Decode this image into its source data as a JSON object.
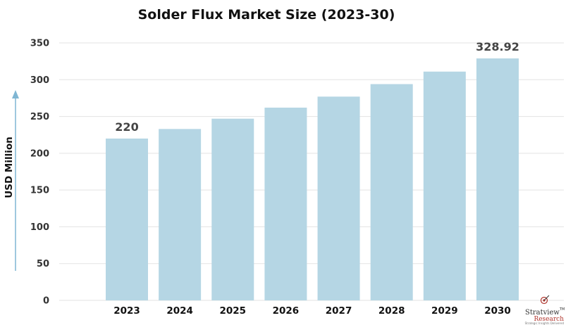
{
  "chart_data": {
    "type": "bar",
    "title": "Solder Flux Market Size (2023-30)",
    "ylabel": "USD Million",
    "xlabel": "",
    "categories": [
      "2023",
      "2024",
      "2025",
      "2026",
      "2027",
      "2028",
      "2029",
      "2030"
    ],
    "values": [
      220,
      233,
      247,
      262,
      277,
      294,
      311,
      328.92
    ],
    "data_labels": [
      "220",
      "",
      "",
      "",
      "",
      "",
      "",
      "328.92"
    ],
    "ylim": [
      0,
      350
    ],
    "yticks": [
      0,
      50,
      100,
      150,
      200,
      250,
      300,
      350
    ],
    "grid": true,
    "bar_color": "#b5d6e4",
    "axis_arrow_color": "#7fb6d3"
  },
  "branding": {
    "logo_name": "Stratview",
    "logo_trademark": "TM",
    "logo_sub": "Research",
    "logo_tagline": "Strategic Insights Delivered",
    "logo_icon": "target-arrow-icon"
  }
}
